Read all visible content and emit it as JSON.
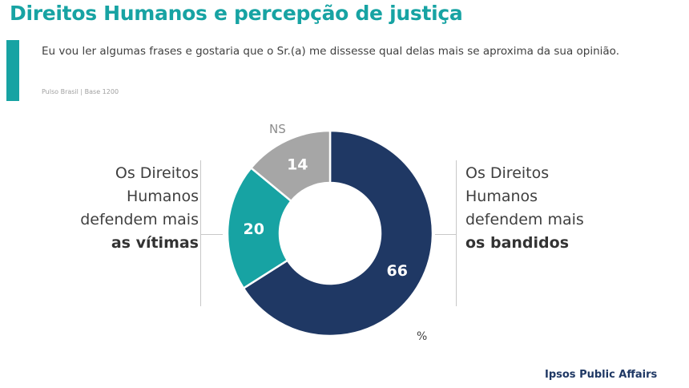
{
  "header": {
    "title": "Direitos Humanos e percepção de justiça",
    "subtitle": "Eu vou ler algumas frases e gostaria que o Sr.(a) me dissesse qual delas mais se aproxima da sua opinião.",
    "source": "Pulso Brasil | Base 1200"
  },
  "labels": {
    "left_line1": "Os Direitos",
    "left_line2": "Humanos",
    "left_line3": "defendem mais",
    "left_bold": "as vítimas",
    "right_line1": "Os Direitos",
    "right_line2": "Humanos",
    "right_line3": "defendem mais",
    "right_bold": "os bandidos",
    "ns": "NS",
    "unit": "%"
  },
  "footer": {
    "brand": "Ipsos Public Affairs"
  },
  "colors": {
    "accent": "#17a3a3",
    "navy": "#1f3864",
    "gray": "#a6a6a6"
  },
  "chart_data": {
    "type": "pie",
    "categories": [
      "Os Direitos Humanos defendem mais os bandidos",
      "Os Direitos Humanos defendem mais as vítimas",
      "NS"
    ],
    "values": [
      66,
      20,
      14
    ],
    "colors": [
      "#1f3864",
      "#17a3a3",
      "#a6a6a6"
    ],
    "unit": "%",
    "style": "donut"
  }
}
